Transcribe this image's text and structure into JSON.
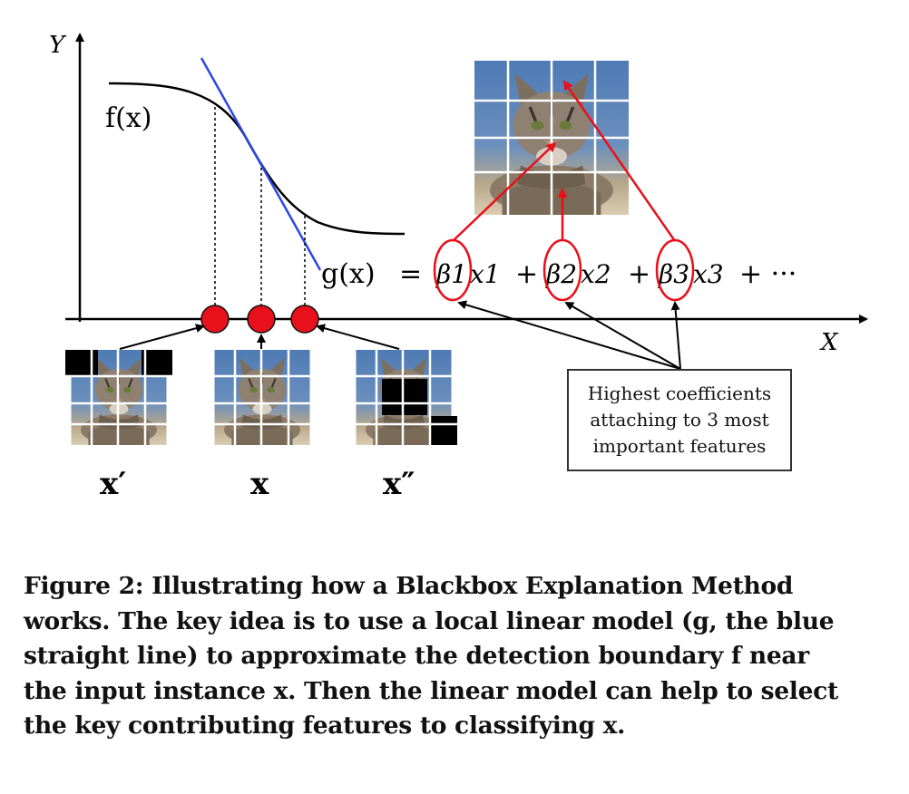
{
  "axes": {
    "y_label": "Y",
    "x_label": "X"
  },
  "curve": {
    "label": "f(x)"
  },
  "equation": {
    "lhs": "g(x)",
    "equals": "=",
    "terms": [
      {
        "coef": "β1",
        "var": "x1"
      },
      {
        "coef": "β2",
        "var": "x2"
      },
      {
        "coef": "β3",
        "var": "x3"
      }
    ],
    "ellipsis": "+ ···"
  },
  "instances": [
    {
      "label": "x′"
    },
    {
      "label": "x"
    },
    {
      "label": "x″"
    }
  ],
  "callout": {
    "lines": [
      "Highest coefficients",
      "attaching to 3 most",
      "important features"
    ]
  },
  "caption": {
    "lines": [
      "Figure 2: Illustrating how a Blackbox Explanation Method",
      "works. The key idea is to use a local linear model (g, the blue",
      "straight line) to approximate the detection boundary f near",
      "the input instance x. Then the linear model can help to select",
      "the key contributing features to classifying x."
    ]
  },
  "colors": {
    "line": "#2b46e6",
    "highlight": "#e8101a",
    "axis": "#000000"
  }
}
